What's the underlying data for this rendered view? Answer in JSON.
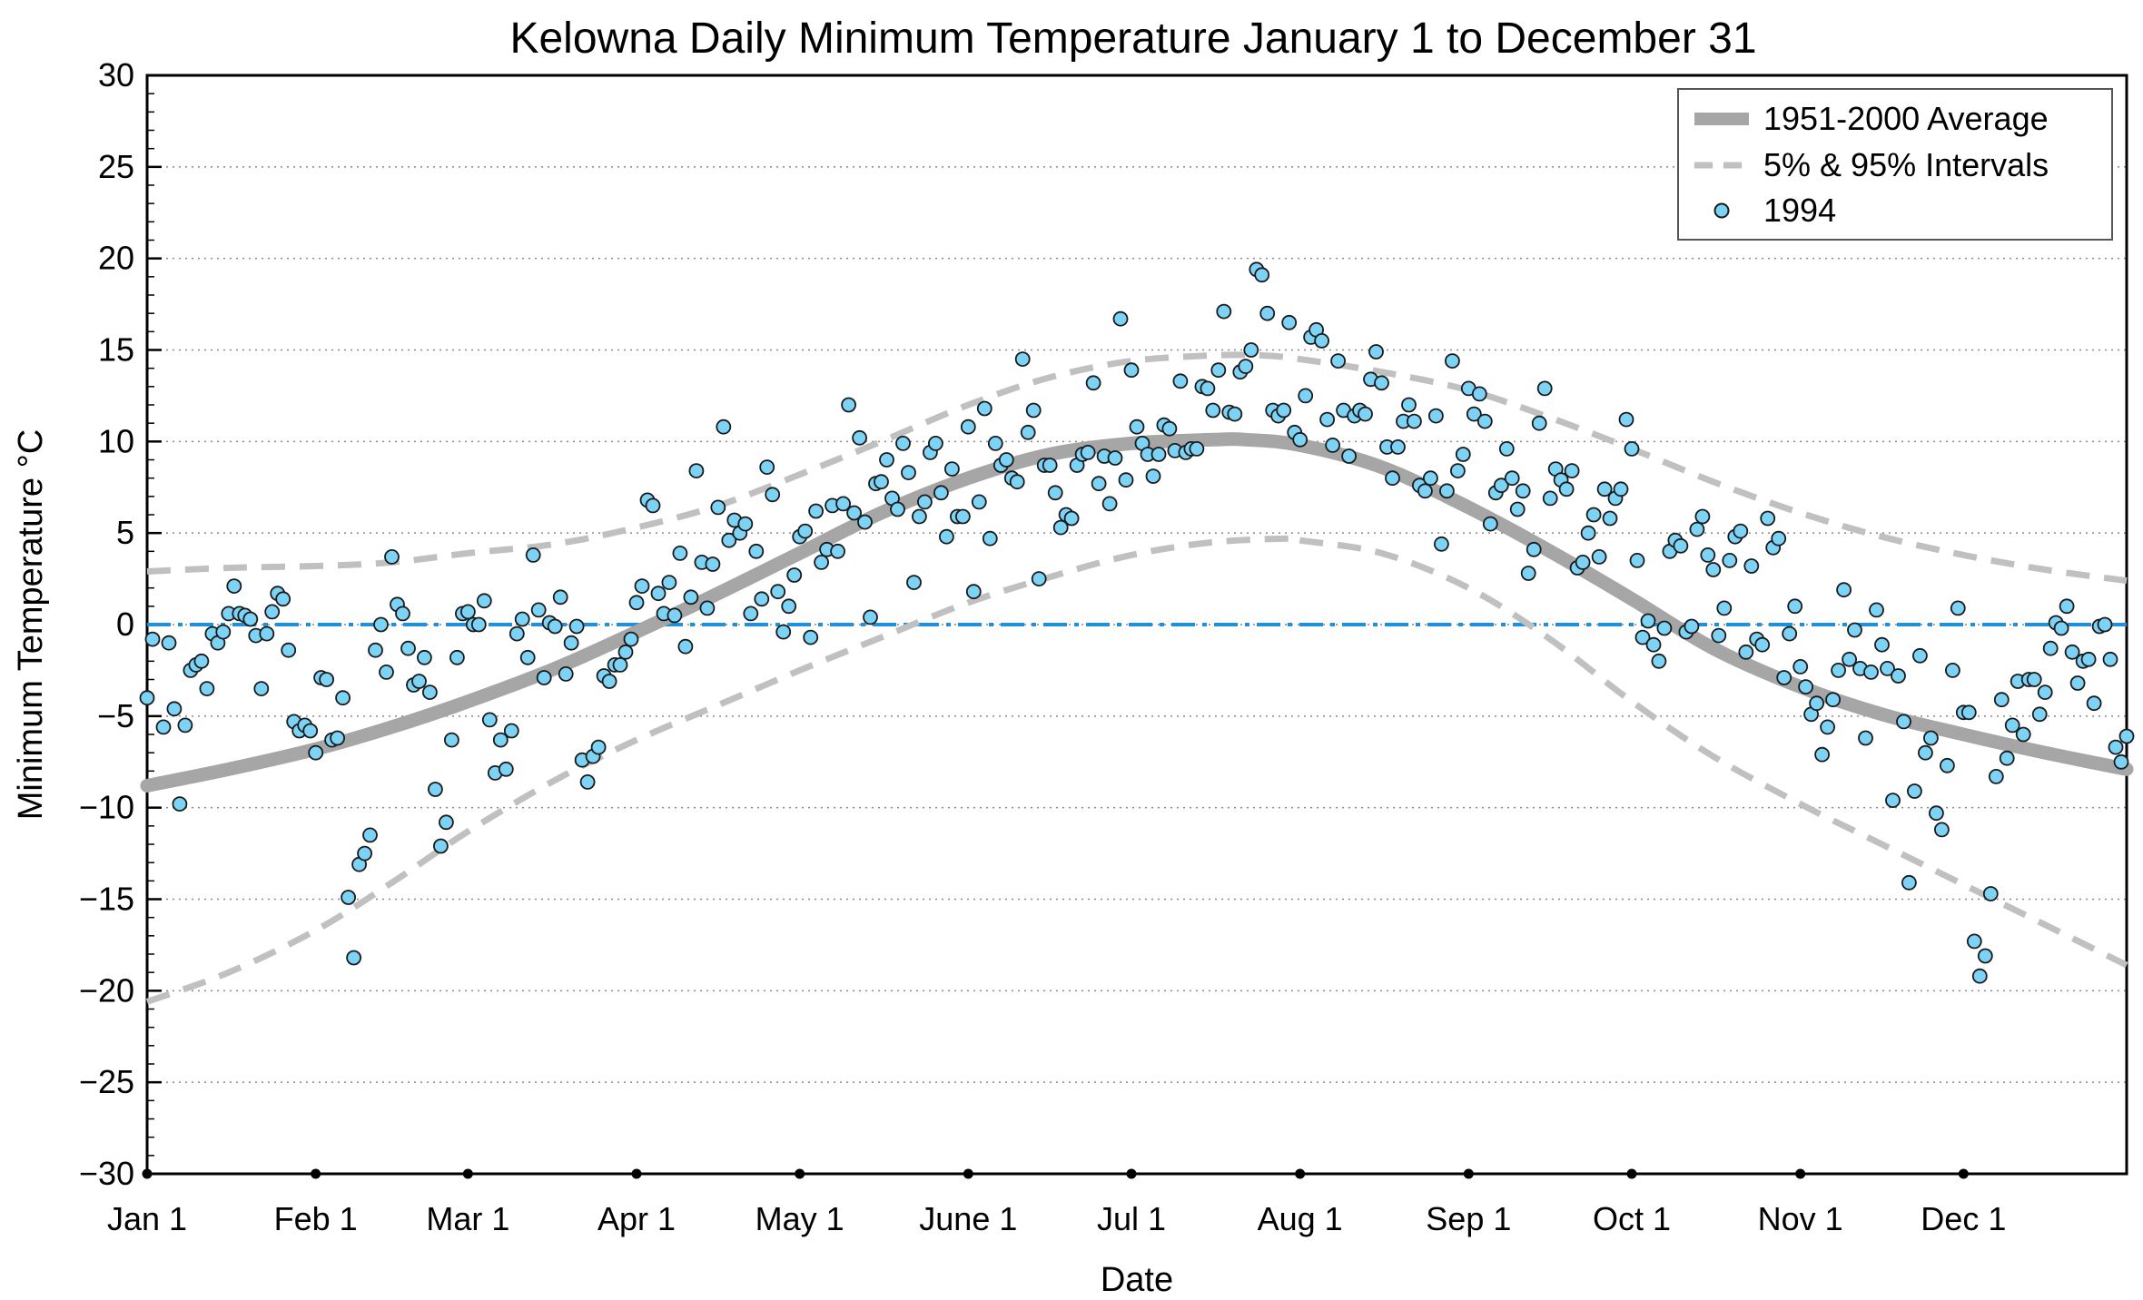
{
  "chart_data": {
    "type": "line",
    "title": "Kelowna Daily Minimum Temperature January 1 to December 31",
    "xlabel": "Date",
    "ylabel": "Minimum Temperature °C",
    "ylim": [
      -30,
      30
    ],
    "xlim": [
      0,
      364
    ],
    "yticks": [
      -30,
      -25,
      -20,
      -15,
      -10,
      -5,
      0,
      5,
      10,
      15,
      20,
      25,
      30
    ],
    "yticklabels": [
      "−30",
      "−25",
      "−20",
      "−15",
      "−10",
      "−5",
      "0",
      "5",
      "10",
      "15",
      "20",
      "25",
      "30"
    ],
    "xticks": [
      {
        "day": 0,
        "label": "Jan 1"
      },
      {
        "day": 31,
        "label": "Feb 1"
      },
      {
        "day": 59,
        "label": "Mar 1"
      },
      {
        "day": 90,
        "label": "Apr 1"
      },
      {
        "day": 120,
        "label": "May 1"
      },
      {
        "day": 151,
        "label": "June 1"
      },
      {
        "day": 181,
        "label": "Jul 1"
      },
      {
        "day": 212,
        "label": "Aug 1"
      },
      {
        "day": 243,
        "label": "Sep 1"
      },
      {
        "day": 273,
        "label": "Oct 1"
      },
      {
        "day": 304,
        "label": "Nov 1"
      },
      {
        "day": 334,
        "label": "Dec 1"
      }
    ],
    "grid": "horizontal-dotted",
    "reference_line": {
      "y": 0,
      "color": "#1e90dc"
    },
    "legend": {
      "placement": "top-right",
      "entries": [
        "1951-2000 Average",
        "5% & 95% Intervals",
        "1994"
      ]
    },
    "colors": {
      "average": "#a6a6a6",
      "intervals": "#c0c0c0",
      "points_fill": "#7dd3f5",
      "points_edge": "#1a1a1a",
      "zero_line": "#1e90dc"
    },
    "series": [
      {
        "name": "1951-2000 Average",
        "style": "thick-solid",
        "x": [
          0,
          15,
          31,
          45,
          59,
          75,
          90,
          105,
          120,
          135,
          151,
          166,
          181,
          196,
          202,
          212,
          227,
          243,
          258,
          273,
          288,
          304,
          319,
          334,
          349,
          364
        ],
        "y": [
          -8.8,
          -7.9,
          -6.8,
          -5.6,
          -4.2,
          -2.4,
          -0.4,
          1.7,
          3.9,
          6.1,
          8.0,
          9.3,
          9.9,
          10.1,
          10.1,
          9.8,
          8.6,
          6.4,
          4.0,
          1.4,
          -1.3,
          -3.4,
          -4.9,
          -6.0,
          -7.0,
          -7.9
        ]
      },
      {
        "name": "5% & 95% Intervals",
        "style": "dashed",
        "x": [
          0,
          15,
          31,
          45,
          59,
          75,
          90,
          105,
          120,
          135,
          151,
          166,
          181,
          196,
          205,
          212,
          227,
          243,
          258,
          273,
          288,
          304,
          319,
          334,
          349,
          364
        ],
        "y": [
          2.9,
          3.1,
          3.2,
          3.4,
          3.9,
          4.4,
          5.3,
          6.5,
          8.2,
          10.0,
          12.0,
          13.5,
          14.4,
          14.7,
          14.7,
          14.5,
          13.8,
          12.8,
          11.3,
          9.6,
          7.8,
          6.1,
          4.8,
          3.8,
          3.0,
          2.4
        ]
      },
      {
        "name": "5% Interval",
        "style": "dashed",
        "x": [
          0,
          15,
          31,
          45,
          59,
          75,
          90,
          105,
          120,
          135,
          151,
          166,
          181,
          196,
          210,
          212,
          227,
          243,
          258,
          273,
          288,
          304,
          319,
          334,
          349,
          364
        ],
        "y": [
          -20.6,
          -19.0,
          -16.7,
          -14.1,
          -11.3,
          -8.5,
          -6.3,
          -4.4,
          -2.5,
          -0.7,
          1.2,
          2.6,
          3.8,
          4.5,
          4.7,
          4.6,
          3.9,
          2.0,
          -0.8,
          -4.2,
          -7.2,
          -9.8,
          -12.0,
          -14.2,
          -16.4,
          -18.6
        ]
      },
      {
        "name": "1994",
        "style": "points",
        "x": [
          0,
          1,
          3,
          4,
          5,
          6,
          7,
          8,
          9,
          10,
          11,
          12,
          13,
          14,
          15,
          16,
          17,
          18,
          19,
          20,
          21,
          22,
          23,
          24,
          25,
          26,
          27,
          28,
          29,
          30,
          31,
          32,
          33,
          34,
          35,
          36,
          37,
          38,
          39,
          40,
          41,
          42,
          43,
          44,
          45,
          46,
          47,
          48,
          49,
          50,
          51,
          52,
          53,
          54,
          55,
          56,
          57,
          58,
          59,
          60,
          61,
          62,
          63,
          64,
          65,
          66,
          67,
          68,
          69,
          70,
          71,
          72,
          73,
          74,
          75,
          76,
          77,
          78,
          79,
          80,
          81,
          82,
          83,
          84,
          85,
          86,
          87,
          88,
          89,
          90,
          91,
          92,
          93,
          94,
          95,
          96,
          97,
          98,
          99,
          100,
          101,
          102,
          103,
          104,
          105,
          106,
          107,
          108,
          109,
          110,
          111,
          112,
          113,
          114,
          115,
          116,
          117,
          118,
          119,
          120,
          121,
          122,
          123,
          124,
          125,
          126,
          127,
          128,
          129,
          130,
          131,
          132,
          133,
          134,
          135,
          136,
          137,
          138,
          139,
          140,
          141,
          142,
          143,
          144,
          145,
          146,
          147,
          148,
          149,
          150,
          151,
          152,
          153,
          154,
          155,
          156,
          157,
          158,
          159,
          160,
          161,
          162,
          163,
          164,
          165,
          166,
          167,
          168,
          169,
          170,
          171,
          172,
          173,
          174,
          175,
          176,
          177,
          178,
          179,
          180,
          181,
          182,
          183,
          184,
          185,
          186,
          187,
          188,
          189,
          190,
          191,
          192,
          193,
          194,
          195,
          196,
          197,
          198,
          199,
          200,
          201,
          202,
          203,
          204,
          205,
          206,
          207,
          208,
          209,
          210,
          211,
          212,
          213,
          214,
          215,
          216,
          217,
          218,
          219,
          220,
          221,
          222,
          223,
          224,
          225,
          226,
          227,
          228,
          229,
          230,
          231,
          232,
          233,
          234,
          235,
          236,
          237,
          238,
          239,
          240,
          241,
          242,
          243,
          244,
          245,
          246,
          247,
          248,
          249,
          250,
          251,
          252,
          253,
          254,
          255,
          256,
          257,
          258,
          259,
          260,
          261,
          262,
          263,
          264,
          265,
          266,
          267,
          268,
          269,
          270,
          271,
          272,
          273,
          274,
          275,
          276,
          277,
          278,
          279,
          280,
          281,
          282,
          283,
          284,
          285,
          286,
          287,
          288,
          289,
          290,
          291,
          292,
          293,
          294,
          295,
          296,
          297,
          298,
          299,
          300,
          301,
          302,
          303,
          304,
          305,
          306,
          307,
          308,
          309,
          310,
          311,
          312,
          313,
          314,
          315,
          316,
          317,
          318,
          319,
          320,
          321,
          322,
          323,
          324,
          325,
          326,
          327,
          328,
          329,
          330,
          331,
          332,
          333,
          334,
          335,
          336,
          337,
          338,
          339,
          340,
          341,
          342,
          343,
          344,
          345,
          346,
          347,
          348,
          349,
          350,
          351,
          352,
          353,
          354,
          355,
          356,
          357,
          358,
          359,
          360,
          361,
          362,
          363,
          364
        ],
        "y": [
          -4.0,
          -0.8,
          -5.6,
          -1.0,
          -4.6,
          -9.8,
          -5.5,
          -2.5,
          -2.2,
          -2.0,
          -3.5,
          -0.5,
          -1.0,
          -0.4,
          0.6,
          2.1,
          0.6,
          0.5,
          0.3,
          -0.6,
          -3.5,
          -0.5,
          0.7,
          1.7,
          1.4,
          -1.4,
          -5.3,
          -5.8,
          -5.5,
          -5.8,
          -7.0,
          -2.9,
          -3.0,
          -6.3,
          -6.2,
          -4.0,
          -14.9,
          -18.2,
          -13.1,
          -12.5,
          -11.5,
          -1.4,
          0.0,
          -2.6,
          3.7,
          1.1,
          0.6,
          -1.3,
          -3.3,
          -3.1,
          -1.8,
          -3.7,
          -9.0,
          -12.1,
          -10.8,
          -6.3,
          -1.8,
          0.6,
          0.7,
          0.0,
          0.0,
          1.3,
          -5.2,
          -8.1,
          -6.3,
          -7.9,
          -5.8,
          -0.5,
          0.3,
          -1.8,
          3.8,
          0.8,
          -2.9,
          0.1,
          -0.1,
          1.5,
          -2.7,
          -1.0,
          -0.1,
          -7.4,
          -8.6,
          -7.2,
          -6.7,
          -2.8,
          -3.1,
          -2.2,
          -2.2,
          -1.5,
          -0.8,
          1.2,
          2.1,
          6.8,
          6.5,
          1.7,
          0.6,
          2.3,
          0.5,
          3.9,
          -1.2,
          1.5,
          8.4,
          3.4,
          0.9,
          3.3,
          6.4,
          10.8,
          4.6,
          5.7,
          5.0,
          5.5,
          0.6,
          4.0,
          1.4,
          8.6,
          7.1,
          1.8,
          -0.4,
          1.0,
          2.7,
          4.8,
          5.1,
          -0.7,
          6.2,
          3.4,
          4.1,
          6.5,
          4.0,
          6.6,
          12.0,
          6.1,
          10.2,
          5.6,
          0.4,
          7.7,
          7.8,
          9.0,
          6.9,
          6.3,
          9.9,
          8.3,
          2.3,
          5.9,
          6.7,
          9.4,
          9.9,
          7.2,
          4.8,
          8.5,
          5.9,
          5.9,
          10.8,
          1.8,
          6.7,
          11.8,
          4.7,
          9.9,
          8.7,
          9.0,
          8.0,
          7.8,
          14.5,
          10.5,
          11.7,
          2.5,
          8.7,
          8.7,
          7.2,
          5.3,
          6.0,
          5.8,
          8.7,
          9.3,
          9.4,
          13.2,
          7.7,
          9.2,
          6.6,
          9.1,
          16.7,
          7.9,
          13.9,
          10.8,
          9.9,
          9.3,
          8.1,
          9.3,
          10.9,
          10.7,
          9.5,
          13.3,
          9.4,
          9.6,
          9.6,
          13.0,
          12.9,
          11.7,
          13.9,
          17.1,
          11.6,
          11.5,
          13.8,
          14.1,
          15.0,
          19.4,
          19.1,
          17.0,
          11.7,
          11.4,
          11.7,
          16.5,
          10.5,
          10.1,
          12.5,
          15.7,
          16.1,
          15.5,
          11.2,
          9.8,
          14.4,
          11.7,
          9.2,
          11.4,
          11.7,
          11.5,
          13.4,
          14.9,
          13.2,
          9.7,
          8.0,
          9.7,
          11.1,
          12.0,
          11.1,
          7.6,
          7.3,
          8.0,
          11.4,
          4.4,
          7.3,
          14.4,
          8.4,
          9.3,
          12.9,
          11.5,
          12.6,
          11.1,
          5.5,
          7.2,
          7.6,
          9.6,
          8.0,
          6.3,
          7.3,
          2.8,
          4.1,
          11.0,
          12.9,
          6.9,
          8.5,
          7.9,
          7.4,
          8.4,
          3.1,
          3.4,
          5.0,
          6.0,
          3.7,
          7.4,
          5.8,
          6.9,
          7.4,
          11.2,
          9.6,
          3.5,
          -0.7,
          0.2,
          -1.1,
          -2.0,
          -0.2,
          4.0,
          4.6,
          4.3,
          -0.4,
          -0.1,
          5.2,
          5.9,
          3.8,
          3.0,
          -0.6,
          0.9,
          3.5,
          4.8,
          5.1,
          -1.5,
          3.2,
          -0.8,
          -1.1,
          5.8,
          4.2,
          4.7,
          -2.9,
          -0.5,
          1.0,
          -2.3,
          -3.4,
          -4.9,
          -4.3,
          -7.1,
          -5.6,
          -4.1,
          -2.5,
          1.9,
          -1.9,
          -0.3,
          -2.4,
          -6.2,
          -2.6,
          0.8,
          -1.1,
          -2.4,
          -9.6,
          -2.8,
          -5.3,
          -14.1,
          -9.1,
          -1.7,
          -7.0,
          -6.2,
          -10.3,
          -11.2,
          -7.7,
          -2.5,
          0.9,
          -4.8,
          -4.8,
          -17.3,
          -19.2,
          -18.1,
          -14.7,
          -8.3,
          -4.1,
          -7.3,
          -5.5,
          -3.1,
          -6.0,
          -3.0,
          -3.0,
          -4.9,
          -3.7,
          -1.3,
          0.1,
          -0.2,
          1.0,
          -1.5,
          -3.2,
          -2.0,
          -1.9,
          -4.3,
          -0.1,
          0.0,
          -1.9,
          -6.7,
          -7.5,
          -6.1
        ]
      }
    ]
  }
}
